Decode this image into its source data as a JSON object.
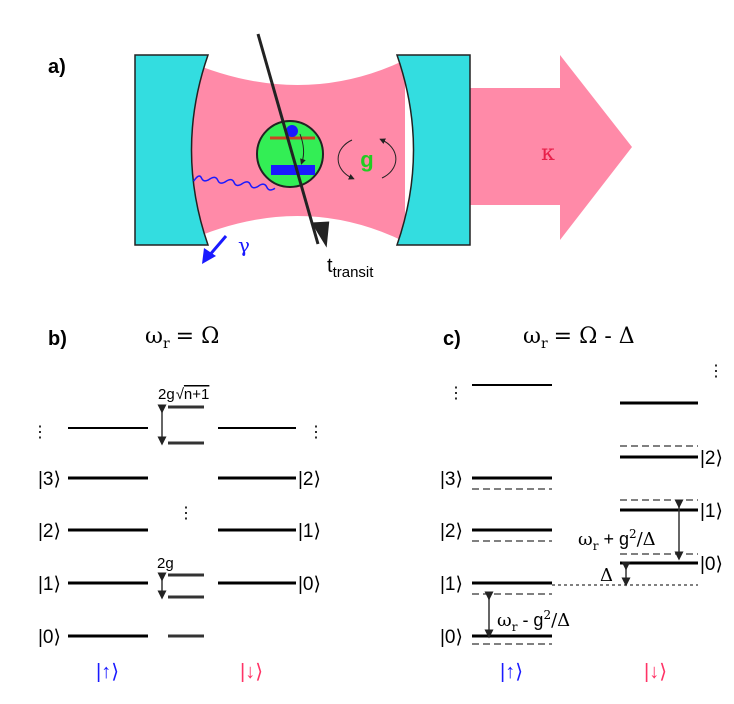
{
  "panels": {
    "a": "a)",
    "b": "b)",
    "c": "c)"
  },
  "panel_a": {
    "g_label": "g",
    "kappa_label": "κ",
    "gamma_label": "γ",
    "t_main": "t",
    "t_sub": "transit"
  },
  "panel_b": {
    "title_omega": "ω",
    "title_sub": "r",
    "title_rest": "= Ω",
    "split_top": "2g",
    "split_top_sqrt": "√",
    "split_top_rad": "n+1",
    "split_bottom": "2g",
    "left_levels": [
      "|0⟩",
      "|1⟩",
      "|2⟩",
      "|3⟩"
    ],
    "right_levels": [
      "|0⟩",
      "|1⟩",
      "|2⟩"
    ],
    "dots": "⋮",
    "left_spin": "|↑⟩",
    "right_spin": "|↓⟩"
  },
  "panel_c": {
    "title_omega": "ω",
    "title_sub": "r",
    "title_rest": "= Ω - Δ",
    "left_levels": [
      "|0⟩",
      "|1⟩",
      "|2⟩",
      "|3⟩"
    ],
    "right_levels": [
      "|0⟩",
      "|1⟩",
      "|2⟩"
    ],
    "dots": "⋮",
    "lower_omega": "ω",
    "lower_sub": "r",
    "lower_rest": " - g",
    "lower_sup": "2",
    "lower_tail": "/Δ",
    "upper_omega": "ω",
    "upper_sub": "r",
    "upper_rest": " + g",
    "upper_sup": "2",
    "upper_tail": "/Δ",
    "delta": "Δ",
    "left_spin": "|↑⟩",
    "right_spin": "|↓⟩"
  },
  "colors": {
    "cavity_light": "#ff8aa8",
    "mirror": "#33dde0",
    "atom": "#33ee55",
    "spin_up": "#1a1aff",
    "spin_down": "#ff3366",
    "g_color": "#22cc22",
    "kappa_color": "#e8204a"
  }
}
